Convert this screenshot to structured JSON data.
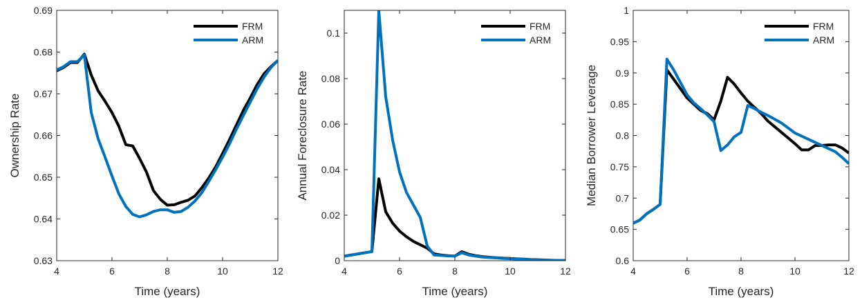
{
  "colors": {
    "FRM": "#000000",
    "ARM": "#0072BD"
  },
  "chart_data": [
    {
      "type": "line",
      "xlabel": "Time (years)",
      "ylabel": "Ownership Rate",
      "xlim": [
        4,
        12
      ],
      "ylim": [
        0.63,
        0.69
      ],
      "xticks": [
        4,
        6,
        8,
        10,
        12
      ],
      "xtick_labels": [
        "4",
        "6",
        "8",
        "10",
        "12"
      ],
      "yticks": [
        0.63,
        0.64,
        0.65,
        0.66,
        0.67,
        0.68,
        0.69
      ],
      "ytick_labels": [
        "0.63",
        "0.64",
        "0.65",
        "0.66",
        "0.67",
        "0.68",
        "0.69"
      ],
      "legend": "top-right",
      "grid": false,
      "series": [
        {
          "name": "FRM",
          "x": [
            4,
            4.25,
            4.5,
            4.75,
            5,
            5.25,
            5.5,
            5.75,
            6,
            6.25,
            6.5,
            6.75,
            7,
            7.25,
            7.5,
            7.75,
            8,
            8.25,
            8.5,
            8.75,
            9,
            9.25,
            9.5,
            9.75,
            10,
            10.25,
            10.5,
            10.75,
            11,
            11.25,
            11.5,
            11.75,
            12
          ],
          "y": [
            0.6755,
            0.6763,
            0.6775,
            0.6775,
            0.6795,
            0.6745,
            0.6707,
            0.6682,
            0.6655,
            0.6622,
            0.6578,
            0.6575,
            0.6545,
            0.6512,
            0.6468,
            0.6447,
            0.6433,
            0.6434,
            0.644,
            0.6445,
            0.6455,
            0.6475,
            0.6498,
            0.6525,
            0.6557,
            0.659,
            0.6625,
            0.666,
            0.669,
            0.6722,
            0.6748,
            0.6765,
            0.678
          ]
        },
        {
          "name": "ARM",
          "x": [
            4,
            4.25,
            4.5,
            4.75,
            5,
            5.25,
            5.5,
            5.75,
            6,
            6.25,
            6.5,
            6.75,
            7,
            7.25,
            7.5,
            7.75,
            8,
            8.25,
            8.5,
            8.75,
            9,
            9.25,
            9.5,
            9.75,
            10,
            10.25,
            10.5,
            10.75,
            11,
            11.25,
            11.5,
            11.75,
            12
          ],
          "y": [
            0.6757,
            0.6765,
            0.6777,
            0.6777,
            0.6793,
            0.6655,
            0.6592,
            0.6548,
            0.6503,
            0.646,
            0.643,
            0.6411,
            0.6405,
            0.641,
            0.6418,
            0.6422,
            0.6422,
            0.6416,
            0.6418,
            0.6428,
            0.6443,
            0.6463,
            0.649,
            0.6518,
            0.6548,
            0.658,
            0.6615,
            0.6648,
            0.668,
            0.6712,
            0.674,
            0.6763,
            0.678
          ]
        }
      ]
    },
    {
      "type": "line",
      "xlabel": "Time (years)",
      "ylabel": "Annual Foreclosure Rate",
      "xlim": [
        4,
        12
      ],
      "ylim": [
        0,
        0.11
      ],
      "xticks": [
        4,
        6,
        8,
        10,
        12
      ],
      "xtick_labels": [
        "4",
        "6",
        "8",
        "10",
        "12"
      ],
      "yticks": [
        0,
        0.02,
        0.04,
        0.06,
        0.08,
        0.1
      ],
      "ytick_labels": [
        "0",
        "0.02",
        "0.04",
        "0.06",
        "0.08",
        "0.1"
      ],
      "legend": "top-right",
      "grid": false,
      "series": [
        {
          "name": "FRM",
          "x": [
            4,
            4.25,
            4.5,
            4.75,
            5,
            5.25,
            5.5,
            5.75,
            6,
            6.25,
            6.5,
            6.75,
            7,
            7.25,
            7.5,
            7.75,
            8,
            8.25,
            8.5,
            8.75,
            9,
            9.25,
            9.5,
            9.75,
            10,
            10.25,
            10.5,
            10.75,
            11,
            11.25,
            11.5,
            11.75,
            12
          ],
          "y": [
            0.002,
            0.0025,
            0.003,
            0.0035,
            0.004,
            0.036,
            0.0215,
            0.0165,
            0.013,
            0.0105,
            0.0085,
            0.007,
            0.0055,
            0.003,
            0.0025,
            0.0022,
            0.002,
            0.004,
            0.0028,
            0.0022,
            0.0018,
            0.0015,
            0.0013,
            0.0011,
            0.001,
            0.0008,
            0.0007,
            0.0005,
            0.0004,
            0.0003,
            0.0002,
            0.0001,
            0.0001
          ]
        },
        {
          "name": "ARM",
          "x": [
            4,
            4.25,
            4.5,
            4.75,
            5,
            5.25,
            5.5,
            5.75,
            6,
            6.25,
            6.5,
            6.75,
            7,
            7.25,
            7.5,
            7.75,
            8,
            8.25,
            8.5,
            8.75,
            9,
            9.25,
            9.5,
            9.75,
            10,
            10.25,
            10.5,
            10.75,
            11,
            11.25,
            11.5,
            11.75,
            12
          ],
          "y": [
            0.002,
            0.0025,
            0.003,
            0.0035,
            0.004,
            0.11,
            0.072,
            0.053,
            0.039,
            0.03,
            0.0245,
            0.019,
            0.0065,
            0.0025,
            0.0023,
            0.0021,
            0.002,
            0.0035,
            0.0025,
            0.002,
            0.0016,
            0.0014,
            0.0012,
            0.001,
            0.0009,
            0.0007,
            0.0006,
            0.0004,
            0.0003,
            0.0002,
            0.0002,
            0.0001,
            0.0001
          ]
        }
      ]
    },
    {
      "type": "line",
      "xlabel": "Time (years)",
      "ylabel": "Median Borrower Leverage",
      "xlim": [
        4,
        12
      ],
      "ylim": [
        0.6,
        1
      ],
      "xticks": [
        4,
        6,
        8,
        10,
        12
      ],
      "xtick_labels": [
        "4",
        "6",
        "8",
        "10",
        "12"
      ],
      "yticks": [
        0.6,
        0.65,
        0.7,
        0.75,
        0.8,
        0.85,
        0.9,
        0.95,
        1
      ],
      "ytick_labels": [
        "0.6",
        "0.65",
        "0.7",
        "0.75",
        "0.8",
        "0.85",
        "0.9",
        "0.95",
        "1"
      ],
      "legend": "top-right",
      "grid": false,
      "series": [
        {
          "name": "FRM",
          "x": [
            4,
            4.25,
            4.5,
            4.75,
            5,
            5.25,
            5.5,
            5.75,
            6,
            6.25,
            6.5,
            6.75,
            7,
            7.25,
            7.5,
            7.75,
            8,
            8.25,
            8.5,
            8.75,
            9,
            9.25,
            9.5,
            9.75,
            10,
            10.25,
            10.5,
            10.75,
            11,
            11.25,
            11.5,
            11.75,
            12
          ],
          "y": [
            0.66,
            0.665,
            0.675,
            0.682,
            0.69,
            0.905,
            0.89,
            0.875,
            0.86,
            0.85,
            0.84,
            0.835,
            0.825,
            0.855,
            0.893,
            0.882,
            0.868,
            0.855,
            0.845,
            0.835,
            0.823,
            0.814,
            0.805,
            0.796,
            0.787,
            0.777,
            0.777,
            0.784,
            0.784,
            0.785,
            0.785,
            0.78,
            0.772
          ]
        },
        {
          "name": "ARM",
          "x": [
            4,
            4.25,
            4.5,
            4.75,
            5,
            5.25,
            5.5,
            5.75,
            6,
            6.25,
            6.5,
            6.75,
            7,
            7.25,
            7.5,
            7.75,
            8,
            8.25,
            8.5,
            8.75,
            9,
            9.25,
            9.5,
            9.75,
            10,
            10.25,
            10.5,
            10.75,
            11,
            11.25,
            11.5,
            11.75,
            12
          ],
          "y": [
            0.66,
            0.665,
            0.675,
            0.682,
            0.69,
            0.922,
            0.905,
            0.885,
            0.865,
            0.852,
            0.843,
            0.833,
            0.822,
            0.776,
            0.785,
            0.798,
            0.805,
            0.848,
            0.843,
            0.837,
            0.832,
            0.826,
            0.82,
            0.812,
            0.804,
            0.799,
            0.794,
            0.789,
            0.784,
            0.779,
            0.774,
            0.765,
            0.755
          ]
        }
      ]
    }
  ]
}
